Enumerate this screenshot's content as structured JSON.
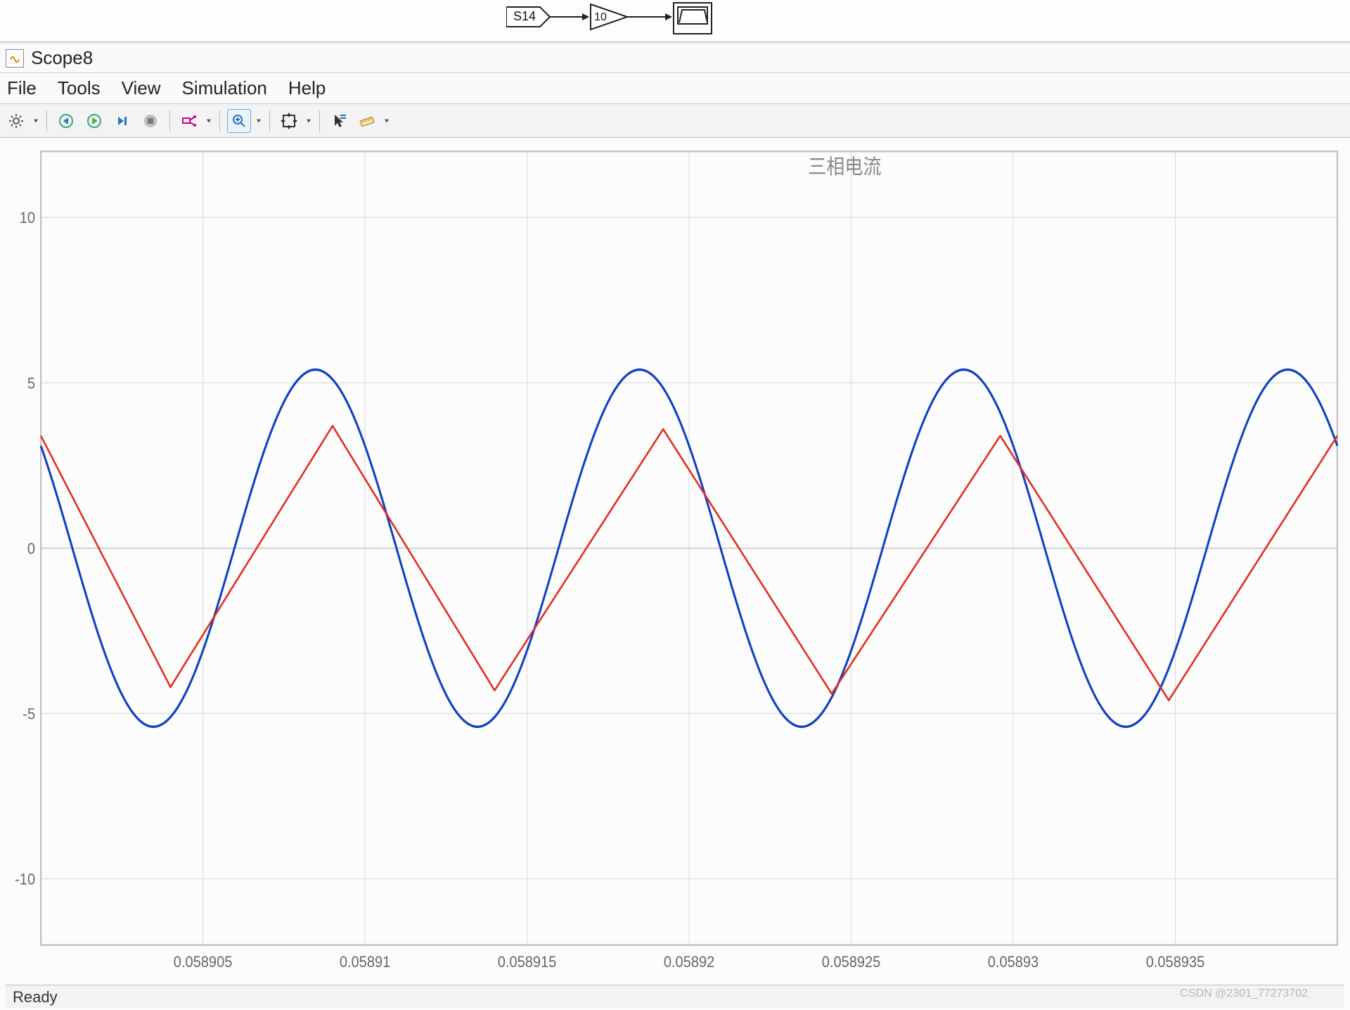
{
  "diagram": {
    "goto_tag": "S14",
    "gain_value": "10"
  },
  "window": {
    "title": "Scope8",
    "menu": [
      "File",
      "Tools",
      "View",
      "Simulation",
      "Help"
    ],
    "status": "Ready"
  },
  "watermark": "CSDN @2301_77273702",
  "chart": {
    "type": "line",
    "title": "三相电流",
    "background_color": "#fcfcfc",
    "grid_color": "#d8d8d8",
    "axis_color": "#bcbcbc",
    "title_color": "#888888",
    "tick_label_color": "#666666",
    "title_fontsize": 26,
    "tick_fontsize": 20,
    "xlim": [
      0.0589,
      0.05894
    ],
    "ylim": [
      -12,
      12
    ],
    "yticks": [
      -10,
      -5,
      0,
      5,
      10
    ],
    "xticks": [
      0.058905,
      0.05891,
      0.058915,
      0.05892,
      0.058925,
      0.05893,
      0.058935
    ],
    "xtick_labels": [
      "0.058905",
      "0.05891",
      "0.058915",
      "0.05892",
      "0.058925",
      "0.05893",
      "0.058935"
    ],
    "series": [
      {
        "name": "sine",
        "color": "#1040c0",
        "line_width": 3,
        "type": "sine_analytic",
        "amplitude": 5.4,
        "frequency_hz": 100000,
        "phase_deg_at_xstart": 145
      },
      {
        "name": "triangle",
        "color": "#e03020",
        "line_width": 2.5,
        "type": "polyline",
        "points": [
          [
            0.0589,
            3.4
          ],
          [
            0.058904,
            -4.2
          ],
          [
            0.058909,
            3.7
          ],
          [
            0.058914,
            -4.3
          ],
          [
            0.0589192,
            3.6
          ],
          [
            0.0589244,
            -4.4
          ],
          [
            0.0589296,
            3.4
          ],
          [
            0.0589348,
            -4.6
          ],
          [
            0.05894,
            3.4
          ]
        ]
      }
    ]
  }
}
